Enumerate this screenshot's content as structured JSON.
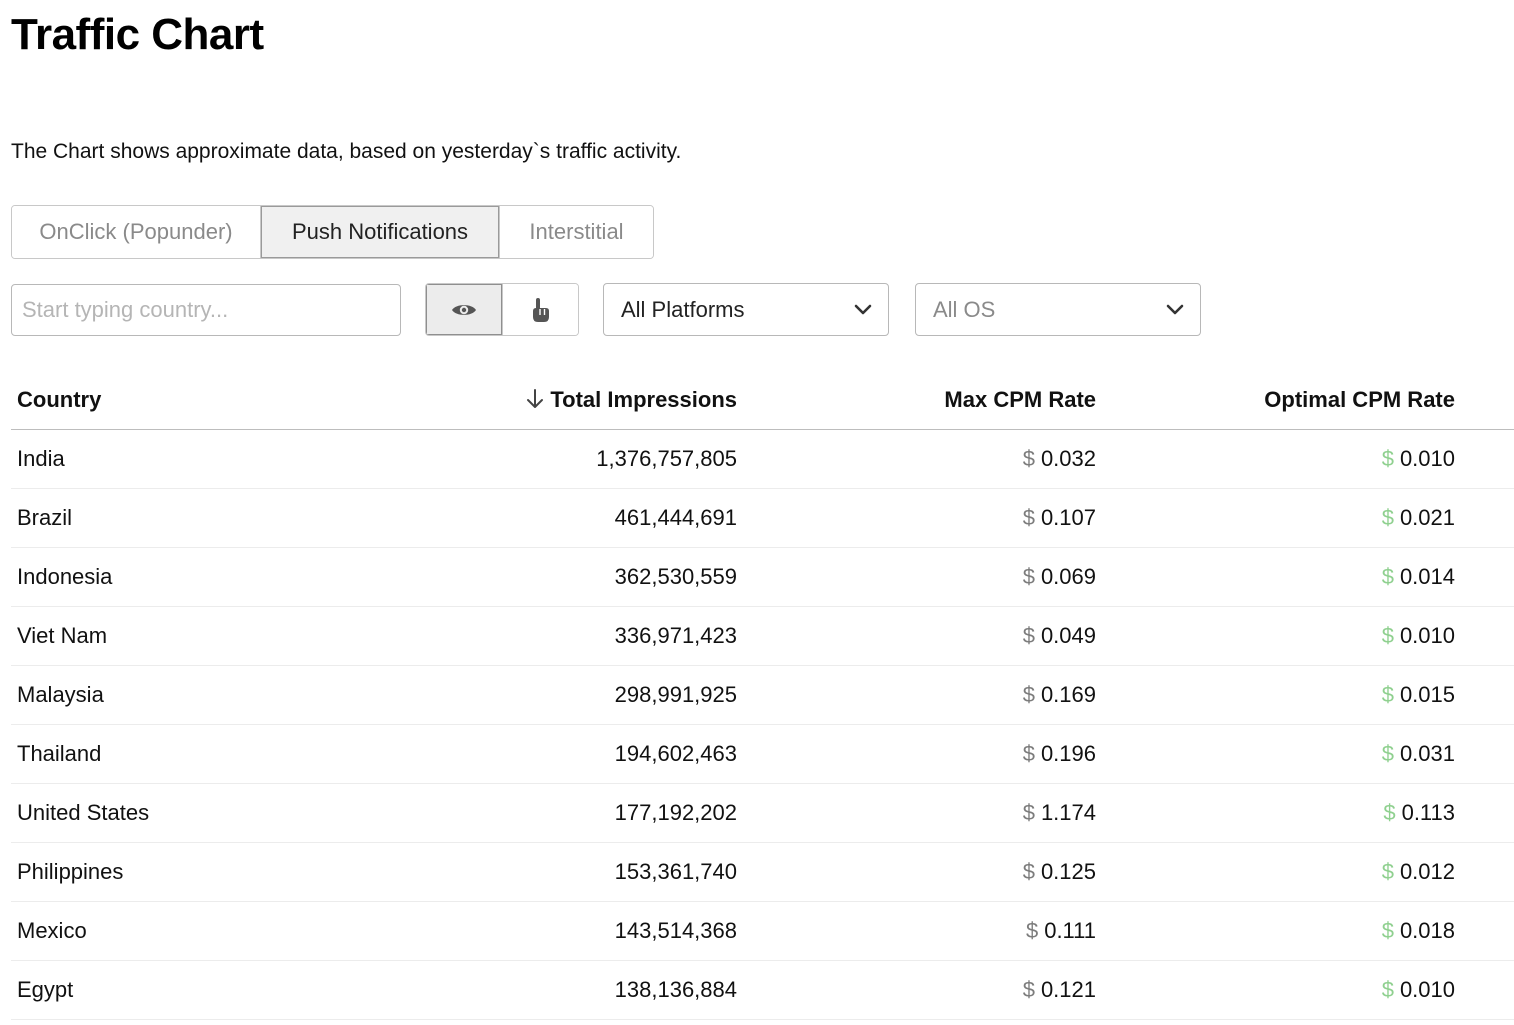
{
  "header": {
    "title": "Traffic Chart",
    "subtitle": "The Chart shows approximate data, based on yesterday`s traffic activity."
  },
  "tabs": [
    {
      "label": "OnClick (Popunder)",
      "active": false
    },
    {
      "label": "Push Notifications",
      "active": true
    },
    {
      "label": "Interstitial",
      "active": false
    }
  ],
  "filters": {
    "search_placeholder": "Start typing country...",
    "view_toggle": [
      {
        "icon": "eye-icon",
        "active": true
      },
      {
        "icon": "pointer-hand-icon",
        "active": false
      }
    ],
    "platform": {
      "value": "All Platforms"
    },
    "os": {
      "value": "All OS"
    }
  },
  "table": {
    "columns": {
      "country": "Country",
      "impressions": "Total Impressions",
      "max_cpm": "Max CPM Rate",
      "optimal_cpm": "Optimal CPM Rate"
    },
    "currency": "$",
    "rows": [
      {
        "country": "India",
        "impressions": "1,376,757,805",
        "max_cpm": "0.032",
        "optimal_cpm": "0.010"
      },
      {
        "country": "Brazil",
        "impressions": "461,444,691",
        "max_cpm": "0.107",
        "optimal_cpm": "0.021"
      },
      {
        "country": "Indonesia",
        "impressions": "362,530,559",
        "max_cpm": "0.069",
        "optimal_cpm": "0.014"
      },
      {
        "country": "Viet Nam",
        "impressions": "336,971,423",
        "max_cpm": "0.049",
        "optimal_cpm": "0.010"
      },
      {
        "country": "Malaysia",
        "impressions": "298,991,925",
        "max_cpm": "0.169",
        "optimal_cpm": "0.015"
      },
      {
        "country": "Thailand",
        "impressions": "194,602,463",
        "max_cpm": "0.196",
        "optimal_cpm": "0.031"
      },
      {
        "country": "United States",
        "impressions": "177,192,202",
        "max_cpm": "1.174",
        "optimal_cpm": "0.113"
      },
      {
        "country": "Philippines",
        "impressions": "153,361,740",
        "max_cpm": "0.125",
        "optimal_cpm": "0.012"
      },
      {
        "country": "Mexico",
        "impressions": "143,514,368",
        "max_cpm": "0.111",
        "optimal_cpm": "0.018"
      },
      {
        "country": "Egypt",
        "impressions": "138,136,884",
        "max_cpm": "0.121",
        "optimal_cpm": "0.010"
      }
    ]
  },
  "colors": {
    "optimal_rate": "#5cb85c",
    "active_tab_bg": "#f0f0f0",
    "border": "#c8c8c8"
  }
}
